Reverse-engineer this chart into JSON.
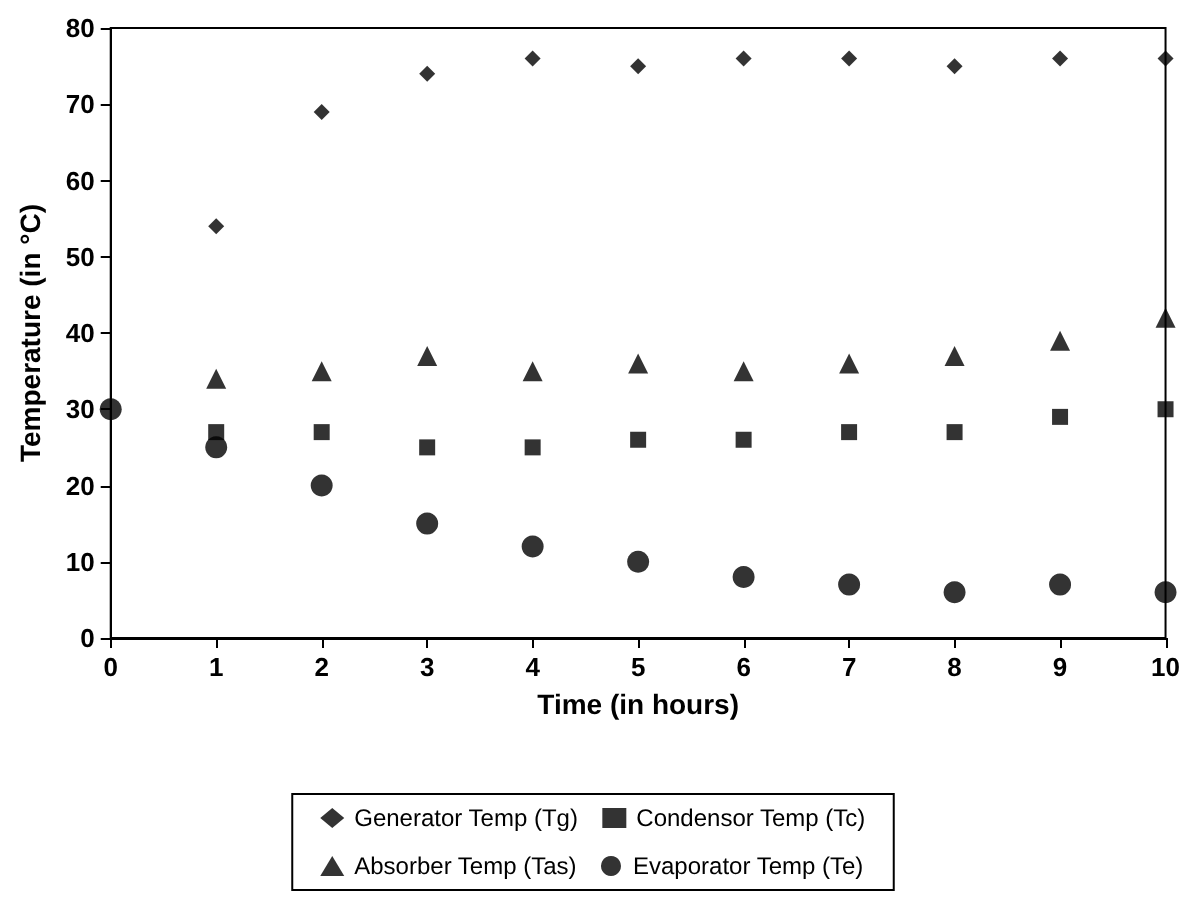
{
  "chart_data": {
    "type": "scatter",
    "xlabel": "Time (in hours)",
    "ylabel": "Temperature (in °C)",
    "x": [
      0,
      1,
      2,
      3,
      4,
      5,
      6,
      7,
      8,
      9,
      10
    ],
    "xlim": [
      0,
      10
    ],
    "xticks": [
      0,
      1,
      2,
      3,
      4,
      5,
      6,
      7,
      8,
      9,
      10
    ],
    "ylim": [
      0,
      80
    ],
    "yticks": [
      0,
      10,
      20,
      30,
      40,
      50,
      60,
      70,
      80
    ],
    "grid": false,
    "legend": "bottom",
    "series": [
      {
        "name": "Generator Temp (Tg)",
        "color": "#000000",
        "marker": "diamond",
        "values": [
          null,
          54,
          69,
          74,
          76,
          75,
          76,
          76,
          75,
          76,
          76
        ]
      },
      {
        "name": "Condensor Temp (Tc)",
        "color": "#000000",
        "marker": "square",
        "values": [
          null,
          27,
          27,
          25,
          25,
          26,
          26,
          27,
          27,
          29,
          30
        ]
      },
      {
        "name": "Absorber Temp (Tas)",
        "color": "#000000",
        "marker": "triangle",
        "values": [
          null,
          34,
          35,
          37,
          35,
          36,
          35,
          36,
          37,
          39,
          42
        ]
      },
      {
        "name": "Evaporator Temp (Te)",
        "color": "#000000",
        "marker": "circle",
        "values": [
          30,
          25,
          20,
          15,
          12,
          10,
          8,
          7,
          6,
          7,
          6
        ]
      }
    ]
  }
}
